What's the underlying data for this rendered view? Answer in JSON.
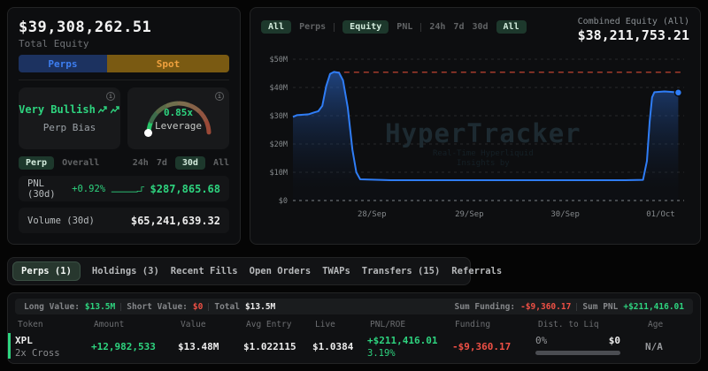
{
  "app": {
    "name": "HyperTracker"
  },
  "colors": {
    "accent_green": "#2ed47f",
    "accent_red": "#ef5045",
    "perps_blue": "#3d7ef0",
    "spot_gold": "#f0a13e",
    "chart_line_blue": "#2f7df6",
    "ath_line_red": "#a33b2b",
    "active_pill_bg": "#1d382c"
  },
  "left_panel": {
    "total_equity_value": "$39,308,262.51",
    "total_equity_label": "Total Equity",
    "perps_button_label": "Perps",
    "spot_button_label": "Spot",
    "bias_card": {
      "value": "Very Bullish",
      "label": "Perp Bias"
    },
    "leverage_card": {
      "value": "0.85x",
      "label": "Leverage"
    },
    "filter_tabs": {
      "perp": "Perp",
      "overall": "Overall",
      "h24": "24h",
      "d7": "7d",
      "d30": "30d",
      "all": "All",
      "active": "30d"
    },
    "pnl_row": {
      "label": "PNL (30d)",
      "percent": "+0.92%",
      "value": "$287,865.68"
    },
    "volume_row": {
      "label": "Volume (30d)",
      "value": "$65,241,639.32"
    }
  },
  "chart_panel": {
    "tabs": {
      "scope_all": "All",
      "scope_perps": "Perps",
      "metric_equity": "Equity",
      "metric_pnl": "PNL",
      "range_24h": "24h",
      "range_7d": "7d",
      "range_30d": "30d",
      "range_all": "All"
    },
    "active_tabs": [
      "All",
      "Equity",
      "All"
    ],
    "combined_label": "Combined Equity (All)",
    "combined_value": "$38,211,753.21",
    "watermark_title": "HyperTracker",
    "watermark_sub1": "Real-Time Hyperliquid",
    "watermark_sub2": "Insights by"
  },
  "chart_data": {
    "type": "area",
    "title": "Combined Equity (All)",
    "unit": "USD (millions)",
    "ylim": [
      0,
      50
    ],
    "grid": "dashed",
    "y_ticks": [
      {
        "v": 0,
        "label": "$0"
      },
      {
        "v": 10,
        "label": "$10M"
      },
      {
        "v": 20,
        "label": "$20M"
      },
      {
        "v": 30,
        "label": "$30M"
      },
      {
        "v": 40,
        "label": "$40M"
      },
      {
        "v": 50,
        "label": "$50M"
      }
    ],
    "x_labels": [
      {
        "f": 0.202,
        "label": "28/Sep"
      },
      {
        "f": 0.451,
        "label": "29/Sep"
      },
      {
        "f": 0.696,
        "label": "30/Sep"
      },
      {
        "f": 0.94,
        "label": "01/Oct"
      }
    ],
    "ath_line": {
      "v": 45.4,
      "from_f": 0.106,
      "color": "#a33b2b"
    },
    "series": [
      {
        "name": "Combined Equity",
        "color": "#2f7df6",
        "points": [
          [
            0,
            29.6
          ],
          [
            0.01,
            30.2
          ],
          [
            0.04,
            30.5
          ],
          [
            0.055,
            31.2
          ],
          [
            0.065,
            31.6
          ],
          [
            0.075,
            33.5
          ],
          [
            0.085,
            40.5
          ],
          [
            0.095,
            44.8
          ],
          [
            0.105,
            45.5
          ],
          [
            0.118,
            45.2
          ],
          [
            0.128,
            42.5
          ],
          [
            0.14,
            33
          ],
          [
            0.152,
            18
          ],
          [
            0.162,
            10
          ],
          [
            0.172,
            7.5
          ],
          [
            0.25,
            7.2
          ],
          [
            0.45,
            7.2
          ],
          [
            0.65,
            7.2
          ],
          [
            0.85,
            7.2
          ],
          [
            0.895,
            7.3
          ],
          [
            0.905,
            14
          ],
          [
            0.912,
            28
          ],
          [
            0.918,
            36.5
          ],
          [
            0.924,
            38.3
          ],
          [
            0.95,
            38.6
          ],
          [
            0.97,
            38.4
          ],
          [
            0.985,
            38.2
          ]
        ]
      }
    ],
    "end_dot": true
  },
  "bottom_tabs": {
    "active": "Perps (1)",
    "items": [
      {
        "label": "Perps (1)"
      },
      {
        "label": "Holdings (3)"
      },
      {
        "label": "Recent Fills"
      },
      {
        "label": "Open Orders"
      },
      {
        "label": "TWAPs"
      },
      {
        "label": "Transfers (15)"
      },
      {
        "label": "Referrals"
      }
    ]
  },
  "positions_table": {
    "summary": {
      "long_label": "Long Value:",
      "long_value": "$13.5M",
      "short_label": "Short Value:",
      "short_value": "$0",
      "total_label": "Total",
      "total_value": "$13.5M",
      "funding_label": "Sum Funding:",
      "funding_value": "-$9,360.17",
      "pnl_label": "Sum PNL",
      "pnl_value": "+$211,416.01"
    },
    "headers": [
      "Token",
      "Amount",
      "Value",
      "Avg Entry",
      "Live",
      "PNL/ROE",
      "Funding",
      "Dist. to Liq",
      "Age"
    ],
    "row": {
      "token": "XPL",
      "leverage": "2x Cross",
      "amount": "+12,982,533",
      "value": "$13.48M",
      "avg_entry": "$1.022115",
      "live": "$1.0384",
      "pnl": "+$211,416.01",
      "roe": "3.19%",
      "funding": "-$9,360.17",
      "dist_pct": "0%",
      "dist_usd": "$0",
      "age": "N/A"
    }
  }
}
